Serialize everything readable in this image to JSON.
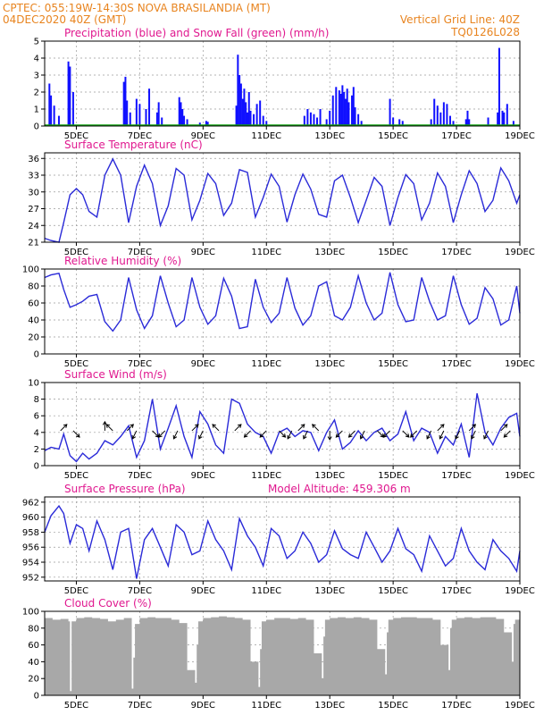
{
  "header": {
    "left_line1": "CPTEC:   055:19W-14:30S   NOVA BRASILANDIA (MT)",
    "left_line2": "04DEC2020 40Z (GMT)",
    "right_line2": "Vertical Grid Line: 40Z",
    "right_line3": "TQ0126L028"
  },
  "colors": {
    "header": "#e8841f",
    "title": "#e0188f",
    "line": "#2a2ad8",
    "precip": "#1010ff",
    "snow": "#10a010",
    "cloud": "#a8a8a8",
    "grid": "#9a9a9a",
    "arrow": "#000000"
  },
  "x_axis": {
    "range_days": [
      4.0,
      19.0
    ],
    "tick_days": [
      5,
      7,
      9,
      11,
      13,
      15,
      17,
      19
    ],
    "tick_labels": [
      "5DEC",
      "7DEC",
      "9DEC",
      "11DEC",
      "13DEC",
      "15DEC",
      "17DEC",
      "19DEC"
    ]
  },
  "chart_data": [
    {
      "type": "bar",
      "title": "Precipitation (blue) and Snow Fall (green) (mm/h)",
      "ylim": [
        0,
        5
      ],
      "yticks": [
        0,
        1,
        2,
        3,
        4,
        5
      ],
      "series": [
        {
          "name": "Precipitation",
          "x": [
            4.15,
            4.2,
            4.3,
            4.45,
            4.75,
            4.8,
            4.9,
            6.5,
            6.55,
            6.6,
            6.7,
            6.9,
            7.0,
            7.2,
            7.3,
            7.55,
            7.6,
            7.7,
            8.25,
            8.3,
            8.35,
            8.4,
            8.5,
            8.9,
            9.1,
            9.15,
            10.05,
            10.1,
            10.15,
            10.2,
            10.25,
            10.3,
            10.35,
            10.4,
            10.45,
            10.5,
            10.6,
            10.7,
            10.8,
            10.9,
            11.0,
            12.2,
            12.3,
            12.4,
            12.5,
            12.6,
            12.7,
            12.9,
            13.0,
            13.1,
            13.2,
            13.3,
            13.35,
            13.4,
            13.45,
            13.5,
            13.55,
            13.6,
            13.7,
            13.75,
            13.8,
            13.9,
            14.0,
            14.9,
            15.0,
            15.2,
            15.3,
            16.2,
            16.3,
            16.4,
            16.5,
            16.6,
            16.7,
            16.8,
            16.9,
            17.3,
            17.35,
            17.4,
            18.0,
            18.3,
            18.35,
            18.45,
            18.5,
            18.6,
            18.8
          ],
          "values": [
            2.5,
            1.8,
            1.2,
            0.6,
            3.8,
            3.5,
            2.0,
            2.6,
            2.9,
            1.5,
            0.8,
            1.6,
            1.3,
            1.0,
            2.2,
            0.8,
            1.4,
            0.5,
            1.7,
            1.4,
            1.0,
            0.6,
            0.4,
            0.2,
            0.3,
            0.25,
            1.2,
            4.2,
            3.0,
            2.5,
            1.6,
            2.2,
            1.4,
            0.8,
            2.0,
            0.9,
            0.7,
            1.3,
            1.5,
            0.6,
            0.3,
            0.6,
            1.0,
            0.8,
            0.7,
            0.5,
            1.0,
            0.4,
            0.9,
            1.8,
            2.3,
            2.1,
            1.9,
            2.4,
            2.0,
            1.6,
            2.2,
            1.4,
            1.8,
            2.3,
            1.1,
            0.7,
            0.3,
            1.6,
            0.5,
            0.4,
            0.3,
            0.4,
            1.6,
            1.2,
            0.8,
            1.4,
            1.3,
            0.6,
            0.3,
            0.4,
            0.9,
            0.4,
            0.5,
            0.8,
            4.6,
            0.9,
            0.8,
            1.3,
            0.3
          ]
        },
        {
          "name": "Snow Fall",
          "x": [],
          "values": []
        }
      ]
    },
    {
      "type": "line",
      "title": "Surface Temperature (nC)",
      "ylim": [
        21,
        37
      ],
      "yticks": [
        21,
        24,
        27,
        30,
        33,
        36
      ],
      "series": [
        {
          "name": "Temperature",
          "x": [
            4.0,
            4.2,
            4.45,
            4.6,
            4.8,
            5.0,
            5.2,
            5.4,
            5.65,
            5.9,
            6.15,
            6.4,
            6.65,
            6.9,
            7.15,
            7.4,
            7.65,
            7.9,
            8.15,
            8.4,
            8.65,
            8.9,
            9.15,
            9.4,
            9.65,
            9.9,
            10.15,
            10.4,
            10.65,
            10.9,
            11.15,
            11.4,
            11.65,
            11.9,
            12.15,
            12.4,
            12.65,
            12.9,
            13.15,
            13.4,
            13.65,
            13.9,
            14.15,
            14.4,
            14.65,
            14.9,
            15.15,
            15.4,
            15.65,
            15.9,
            16.15,
            16.4,
            16.65,
            16.9,
            17.15,
            17.4,
            17.65,
            17.9,
            18.15,
            18.4,
            18.65,
            18.9,
            19.0
          ],
          "values": [
            21.7,
            21.3,
            21.0,
            24.5,
            29.5,
            30.6,
            29.5,
            26.5,
            25.5,
            33.0,
            35.9,
            33.0,
            24.5,
            31.0,
            34.8,
            31.5,
            24.0,
            27.5,
            34.2,
            33.0,
            25.0,
            28.5,
            33.3,
            31.5,
            25.8,
            28.0,
            34.0,
            33.5,
            25.5,
            29.0,
            33.2,
            31.0,
            24.6,
            29.5,
            33.2,
            30.5,
            26.0,
            25.5,
            32.0,
            33.0,
            29.0,
            24.5,
            28.5,
            32.6,
            31.0,
            24.0,
            29.0,
            33.1,
            31.5,
            25.0,
            28.0,
            33.4,
            31.0,
            24.5,
            29.5,
            33.8,
            31.5,
            26.5,
            28.5,
            34.3,
            32.0,
            28.0,
            29.5
          ]
        }
      ]
    },
    {
      "type": "line",
      "title": "Relative Humidity (%)",
      "ylim": [
        0,
        100
      ],
      "yticks": [
        0,
        20,
        40,
        60,
        80,
        100
      ],
      "series": [
        {
          "name": "Relative Humidity",
          "x": [
            4.0,
            4.2,
            4.45,
            4.6,
            4.8,
            5.0,
            5.2,
            5.4,
            5.65,
            5.9,
            6.15,
            6.4,
            6.65,
            6.9,
            7.15,
            7.4,
            7.65,
            7.9,
            8.15,
            8.4,
            8.65,
            8.9,
            9.15,
            9.4,
            9.65,
            9.9,
            10.15,
            10.4,
            10.65,
            10.9,
            11.15,
            11.4,
            11.65,
            11.9,
            12.15,
            12.4,
            12.65,
            12.9,
            13.15,
            13.4,
            13.65,
            13.9,
            14.15,
            14.4,
            14.65,
            14.9,
            15.15,
            15.4,
            15.65,
            15.9,
            16.15,
            16.4,
            16.65,
            16.9,
            17.15,
            17.4,
            17.65,
            17.9,
            18.15,
            18.4,
            18.65,
            18.9,
            19.0
          ],
          "values": [
            90,
            93,
            95,
            76,
            55,
            58,
            62,
            68,
            70,
            38,
            27,
            40,
            90,
            52,
            30,
            45,
            92,
            60,
            32,
            40,
            90,
            55,
            35,
            45,
            89,
            68,
            30,
            32,
            88,
            55,
            37,
            48,
            90,
            54,
            34,
            45,
            80,
            85,
            45,
            40,
            55,
            92,
            60,
            40,
            48,
            96,
            58,
            38,
            40,
            90,
            62,
            40,
            45,
            92,
            58,
            35,
            42,
            78,
            65,
            34,
            40,
            80,
            48
          ]
        }
      ]
    },
    {
      "type": "line",
      "title": "Surface Wind (m/s)",
      "ylim": [
        0,
        10
      ],
      "yticks": [
        0,
        2,
        4,
        6,
        8,
        10
      ],
      "series": [
        {
          "name": "Wind Speed",
          "x": [
            4.0,
            4.2,
            4.45,
            4.6,
            4.8,
            5.0,
            5.2,
            5.4,
            5.65,
            5.9,
            6.15,
            6.4,
            6.65,
            6.9,
            7.15,
            7.4,
            7.65,
            7.9,
            8.15,
            8.4,
            8.65,
            8.9,
            9.15,
            9.4,
            9.65,
            9.9,
            10.15,
            10.4,
            10.65,
            10.9,
            11.15,
            11.4,
            11.65,
            11.9,
            12.15,
            12.4,
            12.65,
            12.9,
            13.15,
            13.4,
            13.65,
            13.9,
            14.15,
            14.4,
            14.65,
            14.9,
            15.15,
            15.4,
            15.65,
            15.9,
            16.15,
            16.4,
            16.65,
            16.9,
            17.15,
            17.4,
            17.65,
            17.9,
            18.15,
            18.4,
            18.65,
            18.9,
            19.0
          ],
          "values": [
            1.8,
            2.2,
            2.0,
            3.8,
            1.2,
            0.5,
            1.5,
            0.8,
            1.5,
            3.0,
            2.5,
            3.5,
            4.8,
            1.0,
            3.0,
            8.0,
            2.0,
            4.5,
            7.2,
            3.5,
            1.0,
            6.5,
            5.0,
            2.5,
            1.5,
            8.0,
            7.5,
            5.0,
            4.0,
            3.5,
            1.5,
            4.0,
            4.5,
            3.5,
            4.2,
            4.0,
            1.8,
            4.0,
            5.5,
            2.0,
            2.8,
            4.2,
            3.0,
            4.0,
            4.5,
            3.0,
            3.8,
            6.5,
            3.0,
            4.5,
            4.0,
            1.5,
            3.5,
            2.5,
            5.0,
            1.0,
            8.7,
            4.0,
            2.5,
            4.5,
            5.8,
            6.3,
            3.5
          ]
        },
        {
          "name": "Wind Direction",
          "x": [
            4.5,
            4.9,
            5.9,
            6.15,
            6.6,
            6.9,
            7.4,
            7.8,
            8.2,
            8.65,
            9.0,
            9.5,
            10.0,
            10.5,
            11.0,
            11.4,
            11.8,
            12.0,
            12.3,
            12.65,
            13.0,
            13.4,
            13.8,
            14.1,
            14.5,
            14.9,
            15.3,
            15.75,
            16.2,
            16.4,
            16.6,
            17.1,
            17.4,
            17.6,
            18.0,
            18.4,
            18.7
          ],
          "u": [
            1,
            1,
            0,
            -1,
            1,
            -1,
            1,
            -1,
            -1,
            1,
            -1,
            -1,
            1,
            -1,
            -1,
            1,
            -1,
            1,
            -1,
            -1,
            0,
            -1,
            -1,
            -1,
            1,
            -1,
            1,
            -1,
            -1,
            1,
            -1,
            -1,
            1,
            -1,
            -1,
            1,
            -1
          ],
          "v": [
            1,
            -1,
            1,
            1,
            1,
            -2,
            -1,
            -1,
            -2,
            1,
            -2,
            1,
            1,
            -1,
            -1,
            -1,
            -2,
            1,
            -2,
            1,
            -2,
            -1,
            -1,
            -2,
            -1,
            -1,
            -1,
            -1,
            -2,
            1,
            -2,
            -2,
            1,
            -2,
            -2,
            1,
            -1
          ]
        }
      ]
    },
    {
      "type": "line",
      "title": "Surface Pressure (hPa)",
      "annotation": "Model Altitude: 459.306 m",
      "ylim": [
        951.5,
        962.7
      ],
      "yticks": [
        952,
        954,
        956,
        958,
        960,
        962
      ],
      "series": [
        {
          "name": "Surface Pressure",
          "x": [
            4.0,
            4.2,
            4.45,
            4.6,
            4.8,
            5.0,
            5.2,
            5.4,
            5.65,
            5.9,
            6.15,
            6.4,
            6.65,
            6.9,
            7.15,
            7.4,
            7.65,
            7.9,
            8.15,
            8.4,
            8.65,
            8.9,
            9.15,
            9.4,
            9.65,
            9.9,
            10.15,
            10.4,
            10.65,
            10.9,
            11.15,
            11.4,
            11.65,
            11.9,
            12.15,
            12.4,
            12.65,
            12.9,
            13.15,
            13.4,
            13.65,
            13.9,
            14.15,
            14.4,
            14.65,
            14.9,
            15.15,
            15.4,
            15.65,
            15.9,
            16.15,
            16.4,
            16.65,
            16.9,
            17.15,
            17.4,
            17.65,
            17.9,
            18.15,
            18.4,
            18.65,
            18.9,
            19.0
          ],
          "values": [
            958.0,
            960.2,
            961.5,
            960.5,
            956.5,
            959.0,
            958.5,
            955.5,
            959.5,
            957.0,
            953.0,
            958.0,
            958.5,
            951.8,
            957.0,
            958.5,
            956.0,
            953.5,
            959.0,
            958.0,
            955.0,
            955.5,
            959.5,
            957.0,
            955.5,
            953.0,
            959.8,
            957.5,
            956.0,
            953.5,
            958.5,
            957.5,
            954.5,
            955.5,
            958.0,
            956.5,
            954.0,
            955.0,
            958.2,
            955.8,
            955.0,
            954.5,
            958.0,
            956.0,
            954.0,
            955.5,
            958.5,
            955.8,
            955.0,
            952.8,
            957.5,
            955.5,
            953.5,
            954.5,
            958.5,
            955.5,
            954.0,
            953.0,
            957.0,
            955.5,
            954.5,
            952.8,
            955.5
          ]
        }
      ]
    },
    {
      "type": "bar",
      "title": "Cloud Cover (%)",
      "ylim": [
        0,
        100
      ],
      "yticks": [
        0,
        20,
        40,
        60,
        80,
        100
      ],
      "series": [
        {
          "name": "Cloud Cover",
          "x": [
            4.0,
            4.25,
            4.5,
            4.75,
            4.8,
            4.85,
            5.0,
            5.25,
            5.5,
            5.75,
            6.0,
            6.25,
            6.5,
            6.75,
            6.8,
            6.85,
            7.0,
            7.25,
            7.5,
            7.75,
            8.0,
            8.25,
            8.5,
            8.75,
            8.8,
            8.85,
            9.0,
            9.25,
            9.5,
            9.75,
            10.0,
            10.25,
            10.5,
            10.75,
            10.8,
            10.85,
            11.0,
            11.25,
            11.5,
            11.75,
            12.0,
            12.25,
            12.5,
            12.75,
            12.8,
            12.85,
            13.0,
            13.25,
            13.5,
            13.75,
            14.0,
            14.25,
            14.5,
            14.75,
            14.8,
            14.85,
            15.0,
            15.25,
            15.5,
            15.75,
            16.0,
            16.25,
            16.5,
            16.75,
            16.8,
            16.85,
            17.0,
            17.25,
            17.5,
            17.75,
            18.0,
            18.25,
            18.5,
            18.75,
            18.8,
            18.85
          ],
          "values": [
            92,
            90,
            91,
            88,
            5,
            88,
            92,
            93,
            92,
            91,
            88,
            90,
            92,
            8,
            45,
            85,
            92,
            93,
            92,
            92,
            90,
            86,
            30,
            15,
            60,
            88,
            92,
            93,
            94,
            93,
            92,
            90,
            40,
            10,
            55,
            88,
            90,
            92,
            92,
            91,
            92,
            90,
            50,
            20,
            70,
            90,
            92,
            93,
            92,
            93,
            92,
            90,
            55,
            25,
            75,
            90,
            92,
            93,
            93,
            92,
            92,
            90,
            60,
            30,
            80,
            90,
            92,
            93,
            92,
            93,
            93,
            91,
            75,
            40,
            85,
            90
          ]
        }
      ]
    }
  ]
}
